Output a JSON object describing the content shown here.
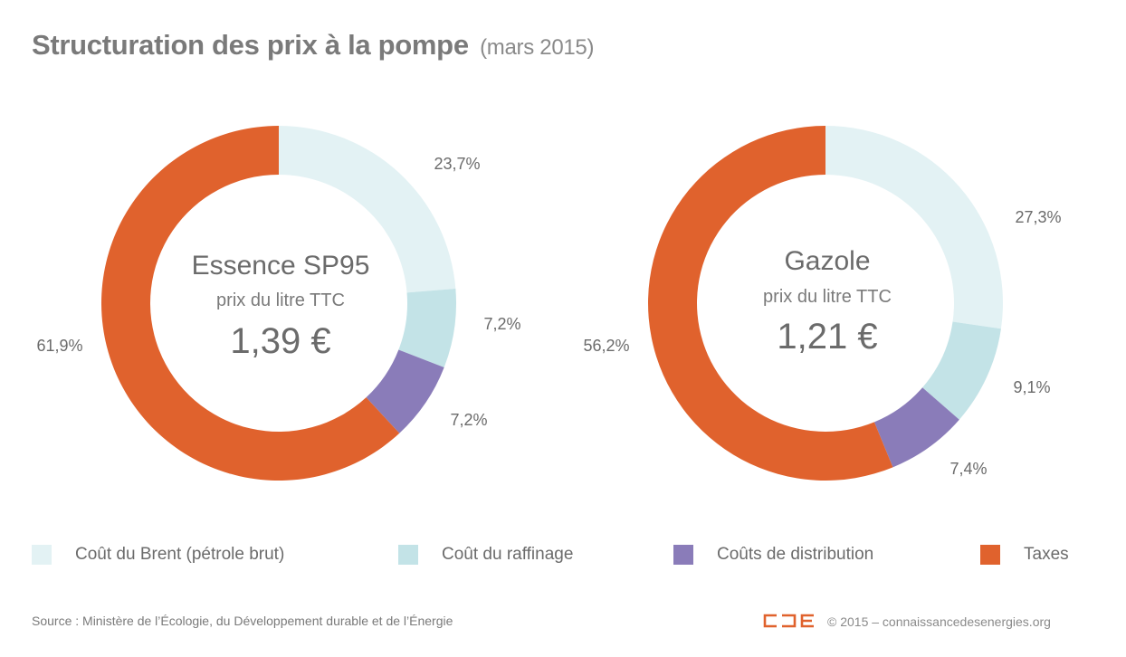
{
  "header": {
    "title": "Structuration des prix à la pompe",
    "subtitle": "(mars 2015)"
  },
  "colors": {
    "brent": "#e3f2f4",
    "raffinage": "#c3e3e7",
    "distribution": "#8a7cb9",
    "taxes": "#e0622d"
  },
  "chart_data": [
    {
      "type": "pie",
      "variant": "donut",
      "center_title": "Essence SP95",
      "center_subtitle": "prix du litre TTC",
      "center_value": "1,39 €",
      "categories": [
        "Coût du Brent (pétrole brut)",
        "Coût du raffinage",
        "Coûts de distribution",
        "Taxes"
      ],
      "values": [
        23.7,
        7.2,
        7.2,
        61.9
      ],
      "labels": [
        "23,7%",
        "7,2%",
        "7,2%",
        "61,9%"
      ]
    },
    {
      "type": "pie",
      "variant": "donut",
      "center_title": "Gazole",
      "center_subtitle": "prix du litre TTC",
      "center_value": "1,21 €",
      "categories": [
        "Coût du Brent (pétrole brut)",
        "Coût du raffinage",
        "Coûts de distribution",
        "Taxes"
      ],
      "values": [
        27.3,
        9.1,
        7.4,
        56.2
      ],
      "labels": [
        "27,3%",
        "9,1%",
        "7,4%",
        "56,2%"
      ]
    }
  ],
  "legend": {
    "items": [
      {
        "label": "Coût du Brent (pétrole brut)"
      },
      {
        "label": "Coût du raffinage"
      },
      {
        "label": "Coûts de distribution"
      },
      {
        "label": "Taxes"
      }
    ]
  },
  "footer": {
    "source": "Source : Ministère de l’Écologie, du Développement durable et de l’Énergie",
    "copyright": "© 2015 – connaissancedesenergies.org"
  }
}
